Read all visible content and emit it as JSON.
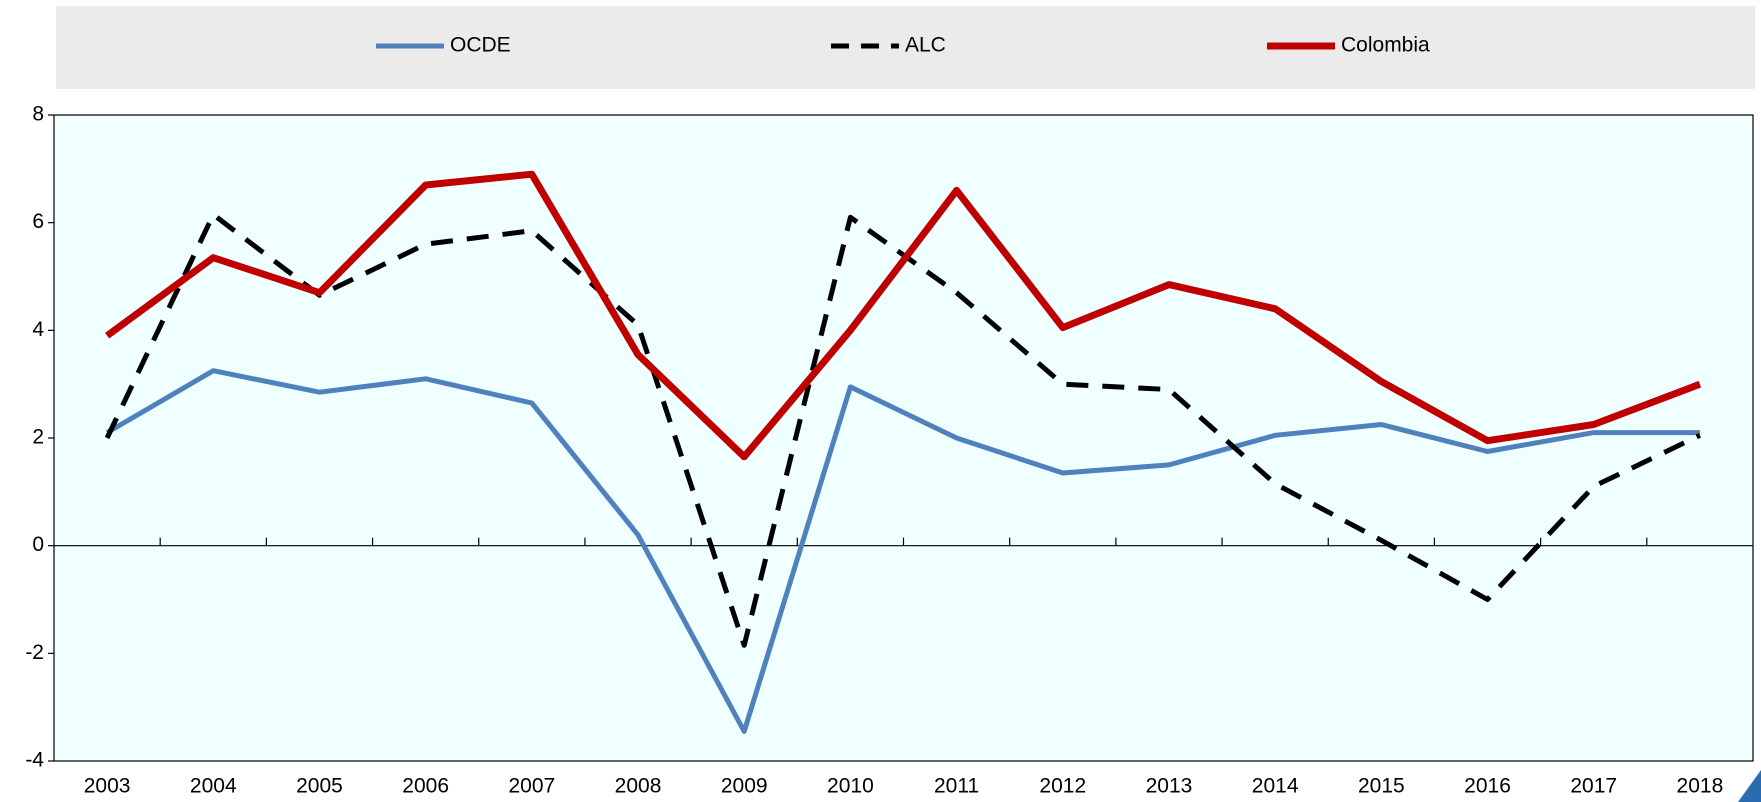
{
  "chart_data": {
    "type": "line",
    "categories": [
      "2003",
      "2004",
      "2005",
      "2006",
      "2007",
      "2008",
      "2009",
      "2010",
      "2011",
      "2012",
      "2013",
      "2014",
      "2015",
      "2016",
      "2017",
      "2018"
    ],
    "series": [
      {
        "name": "OCDE",
        "color": "#4f81bd",
        "values": [
          2.1,
          3.25,
          2.85,
          3.1,
          2.65,
          0.2,
          -3.45,
          2.95,
          2.0,
          1.35,
          1.5,
          2.05,
          2.25,
          1.75,
          2.1,
          2.1
        ]
      },
      {
        "name": "ALC",
        "color": "#000000",
        "dashed": true,
        "values": [
          2.0,
          6.15,
          4.65,
          5.6,
          5.85,
          4.1,
          -1.85,
          6.1,
          4.7,
          3.0,
          2.9,
          1.15,
          0.1,
          -1.0,
          1.1,
          2.05
        ]
      },
      {
        "name": "Colombia",
        "color": "#c00000",
        "values": [
          3.9,
          5.35,
          4.7,
          6.7,
          6.9,
          3.55,
          1.65,
          4.0,
          6.6,
          4.05,
          4.85,
          4.4,
          3.05,
          1.95,
          2.25,
          3.0
        ]
      }
    ],
    "ylim": [
      -4,
      8
    ],
    "yticks": [
      -4,
      -2,
      0,
      2,
      4,
      6,
      8
    ],
    "legend": "top"
  }
}
